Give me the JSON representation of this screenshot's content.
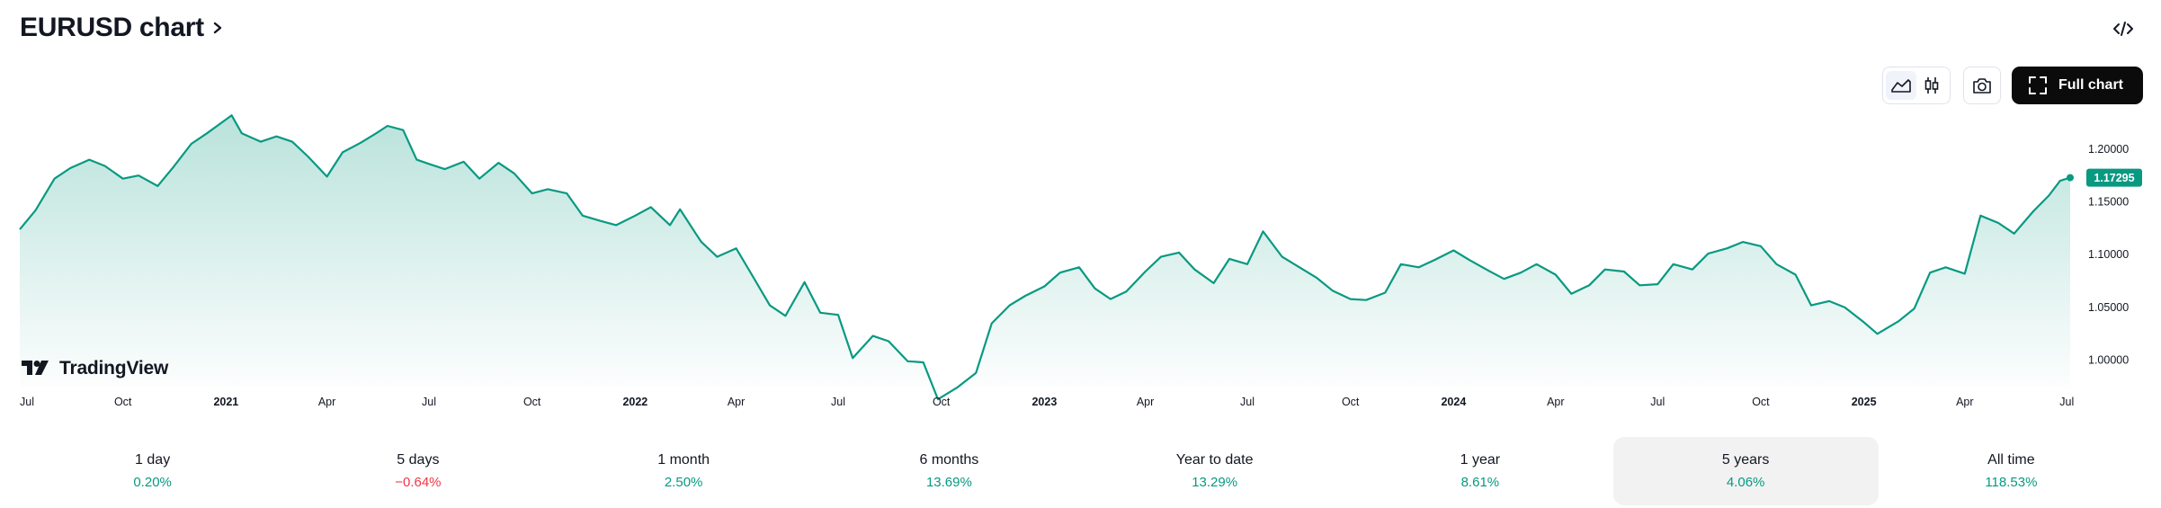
{
  "header": {
    "title": "EURUSD chart",
    "chevron_icon": "chevron-right-icon"
  },
  "toolbar": {
    "embed_icon": "code-icon",
    "area_icon": "area-chart-icon",
    "candles_icon": "candlestick-icon",
    "snapshot_icon": "camera-icon",
    "full_chart_label": "Full chart",
    "full_chart_icon": "fullscreen-icon"
  },
  "brand": {
    "name": "TradingView",
    "logo_icon": "tradingview-logo-icon"
  },
  "colors": {
    "line": "#089981",
    "positive": "#089981",
    "negative": "#f23645",
    "badge": "#089981"
  },
  "chart_data": {
    "type": "area",
    "title": "",
    "xlabel": "",
    "ylabel": "",
    "x_range": [
      "2020-07-01",
      "2025-07-04"
    ],
    "ylim": [
      0.975,
      1.222
    ],
    "y_ticks": [
      "1.20000",
      "1.15000",
      "1.10000",
      "1.05000",
      "1.00000"
    ],
    "y_tick_values": [
      1.2,
      1.15,
      1.1,
      1.05,
      1.0
    ],
    "x_ticks": [
      {
        "label": "Jul",
        "date": "2020-07-01",
        "bold": false
      },
      {
        "label": "Oct",
        "date": "2020-10-01",
        "bold": false
      },
      {
        "label": "2021",
        "date": "2021-01-01",
        "bold": true
      },
      {
        "label": "Apr",
        "date": "2021-04-01",
        "bold": false
      },
      {
        "label": "Jul",
        "date": "2021-07-01",
        "bold": false
      },
      {
        "label": "Oct",
        "date": "2021-10-01",
        "bold": false
      },
      {
        "label": "2022",
        "date": "2022-01-01",
        "bold": true
      },
      {
        "label": "Apr",
        "date": "2022-04-01",
        "bold": false
      },
      {
        "label": "Jul",
        "date": "2022-07-01",
        "bold": false
      },
      {
        "label": "Oct",
        "date": "2022-10-01",
        "bold": false
      },
      {
        "label": "2023",
        "date": "2023-01-01",
        "bold": true
      },
      {
        "label": "Apr",
        "date": "2023-04-01",
        "bold": false
      },
      {
        "label": "Jul",
        "date": "2023-07-01",
        "bold": false
      },
      {
        "label": "Oct",
        "date": "2023-10-01",
        "bold": false
      },
      {
        "label": "2024",
        "date": "2024-01-01",
        "bold": true
      },
      {
        "label": "Apr",
        "date": "2024-04-01",
        "bold": false
      },
      {
        "label": "Jul",
        "date": "2024-07-01",
        "bold": false
      },
      {
        "label": "Oct",
        "date": "2024-10-01",
        "bold": false
      },
      {
        "label": "2025",
        "date": "2025-01-01",
        "bold": true
      },
      {
        "label": "Apr",
        "date": "2025-04-01",
        "bold": false
      },
      {
        "label": "Jul",
        "date": "2025-07-01",
        "bold": false
      }
    ],
    "current_value": "1.17295",
    "series": [
      {
        "points": [
          [
            "2020-07-01",
            1.124
          ],
          [
            "2020-07-15",
            1.142
          ],
          [
            "2020-08-01",
            1.172
          ],
          [
            "2020-08-15",
            1.182
          ],
          [
            "2020-09-01",
            1.19
          ],
          [
            "2020-09-15",
            1.184
          ],
          [
            "2020-10-01",
            1.172
          ],
          [
            "2020-10-15",
            1.175
          ],
          [
            "2020-11-01",
            1.165
          ],
          [
            "2020-11-15",
            1.183
          ],
          [
            "2020-12-01",
            1.205
          ],
          [
            "2020-12-15",
            1.215
          ],
          [
            "2021-01-06",
            1.232
          ],
          [
            "2021-01-15",
            1.215
          ],
          [
            "2021-02-01",
            1.207
          ],
          [
            "2021-02-15",
            1.212
          ],
          [
            "2021-03-01",
            1.207
          ],
          [
            "2021-03-15",
            1.193
          ],
          [
            "2021-04-01",
            1.174
          ],
          [
            "2021-04-15",
            1.197
          ],
          [
            "2021-05-01",
            1.206
          ],
          [
            "2021-05-15",
            1.215
          ],
          [
            "2021-05-25",
            1.222
          ],
          [
            "2021-06-08",
            1.218
          ],
          [
            "2021-06-20",
            1.19
          ],
          [
            "2021-07-01",
            1.186
          ],
          [
            "2021-07-15",
            1.181
          ],
          [
            "2021-08-01",
            1.188
          ],
          [
            "2021-08-15",
            1.172
          ],
          [
            "2021-09-01",
            1.187
          ],
          [
            "2021-09-15",
            1.177
          ],
          [
            "2021-10-01",
            1.158
          ],
          [
            "2021-10-15",
            1.162
          ],
          [
            "2021-11-01",
            1.158
          ],
          [
            "2021-11-15",
            1.137
          ],
          [
            "2021-12-01",
            1.132
          ],
          [
            "2021-12-15",
            1.128
          ],
          [
            "2022-01-01",
            1.137
          ],
          [
            "2022-01-15",
            1.145
          ],
          [
            "2022-02-01",
            1.128
          ],
          [
            "2022-02-10",
            1.143
          ],
          [
            "2022-02-24",
            1.12
          ],
          [
            "2022-03-01",
            1.112
          ],
          [
            "2022-03-15",
            1.098
          ],
          [
            "2022-04-01",
            1.106
          ],
          [
            "2022-04-15",
            1.081
          ],
          [
            "2022-05-01",
            1.052
          ],
          [
            "2022-05-15",
            1.042
          ],
          [
            "2022-06-01",
            1.074
          ],
          [
            "2022-06-15",
            1.045
          ],
          [
            "2022-07-01",
            1.043
          ],
          [
            "2022-07-14",
            1.002
          ],
          [
            "2022-08-01",
            1.023
          ],
          [
            "2022-08-15",
            1.018
          ],
          [
            "2022-09-01",
            0.999
          ],
          [
            "2022-09-15",
            0.998
          ],
          [
            "2022-09-28",
            0.963
          ],
          [
            "2022-10-15",
            0.974
          ],
          [
            "2022-11-01",
            0.988
          ],
          [
            "2022-11-15",
            1.035
          ],
          [
            "2022-12-01",
            1.052
          ],
          [
            "2022-12-15",
            1.061
          ],
          [
            "2023-01-01",
            1.07
          ],
          [
            "2023-01-15",
            1.083
          ],
          [
            "2023-02-01",
            1.088
          ],
          [
            "2023-02-15",
            1.068
          ],
          [
            "2023-03-01",
            1.058
          ],
          [
            "2023-03-15",
            1.065
          ],
          [
            "2023-04-01",
            1.084
          ],
          [
            "2023-04-15",
            1.098
          ],
          [
            "2023-05-01",
            1.102
          ],
          [
            "2023-05-15",
            1.086
          ],
          [
            "2023-06-01",
            1.073
          ],
          [
            "2023-06-15",
            1.096
          ],
          [
            "2023-07-01",
            1.091
          ],
          [
            "2023-07-15",
            1.122
          ],
          [
            "2023-08-01",
            1.098
          ],
          [
            "2023-08-15",
            1.089
          ],
          [
            "2023-09-01",
            1.078
          ],
          [
            "2023-09-15",
            1.066
          ],
          [
            "2023-10-01",
            1.058
          ],
          [
            "2023-10-15",
            1.057
          ],
          [
            "2023-11-01",
            1.064
          ],
          [
            "2023-11-15",
            1.091
          ],
          [
            "2023-12-01",
            1.088
          ],
          [
            "2023-12-15",
            1.095
          ],
          [
            "2024-01-01",
            1.104
          ],
          [
            "2024-01-15",
            1.095
          ],
          [
            "2024-02-01",
            1.085
          ],
          [
            "2024-02-15",
            1.077
          ],
          [
            "2024-03-01",
            1.083
          ],
          [
            "2024-03-15",
            1.091
          ],
          [
            "2024-04-01",
            1.081
          ],
          [
            "2024-04-15",
            1.063
          ],
          [
            "2024-05-01",
            1.071
          ],
          [
            "2024-05-15",
            1.086
          ],
          [
            "2024-06-01",
            1.084
          ],
          [
            "2024-06-15",
            1.071
          ],
          [
            "2024-07-01",
            1.072
          ],
          [
            "2024-07-15",
            1.091
          ],
          [
            "2024-08-01",
            1.086
          ],
          [
            "2024-08-15",
            1.101
          ],
          [
            "2024-09-01",
            1.106
          ],
          [
            "2024-09-15",
            1.112
          ],
          [
            "2024-10-01",
            1.108
          ],
          [
            "2024-10-15",
            1.091
          ],
          [
            "2024-11-01",
            1.081
          ],
          [
            "2024-11-15",
            1.052
          ],
          [
            "2024-12-01",
            1.056
          ],
          [
            "2024-12-15",
            1.05
          ],
          [
            "2025-01-01",
            1.036
          ],
          [
            "2025-01-13",
            1.025
          ],
          [
            "2025-02-01",
            1.037
          ],
          [
            "2025-02-15",
            1.049
          ],
          [
            "2025-03-01",
            1.083
          ],
          [
            "2025-03-15",
            1.088
          ],
          [
            "2025-04-01",
            1.082
          ],
          [
            "2025-04-15",
            1.137
          ],
          [
            "2025-05-01",
            1.13
          ],
          [
            "2025-05-15",
            1.12
          ],
          [
            "2025-06-01",
            1.141
          ],
          [
            "2025-06-15",
            1.156
          ],
          [
            "2025-06-25",
            1.17
          ],
          [
            "2025-07-04",
            1.17295
          ]
        ]
      }
    ]
  },
  "periods": [
    {
      "label": "1 day",
      "value": "0.20%",
      "sign": "pos"
    },
    {
      "label": "5 days",
      "value": "−0.64%",
      "sign": "neg"
    },
    {
      "label": "1 month",
      "value": "2.50%",
      "sign": "pos"
    },
    {
      "label": "6 months",
      "value": "13.69%",
      "sign": "pos"
    },
    {
      "label": "Year to date",
      "value": "13.29%",
      "sign": "pos"
    },
    {
      "label": "1 year",
      "value": "8.61%",
      "sign": "pos"
    },
    {
      "label": "5 years",
      "value": "4.06%",
      "sign": "pos",
      "active": true
    },
    {
      "label": "All time",
      "value": "118.53%",
      "sign": "pos"
    }
  ]
}
